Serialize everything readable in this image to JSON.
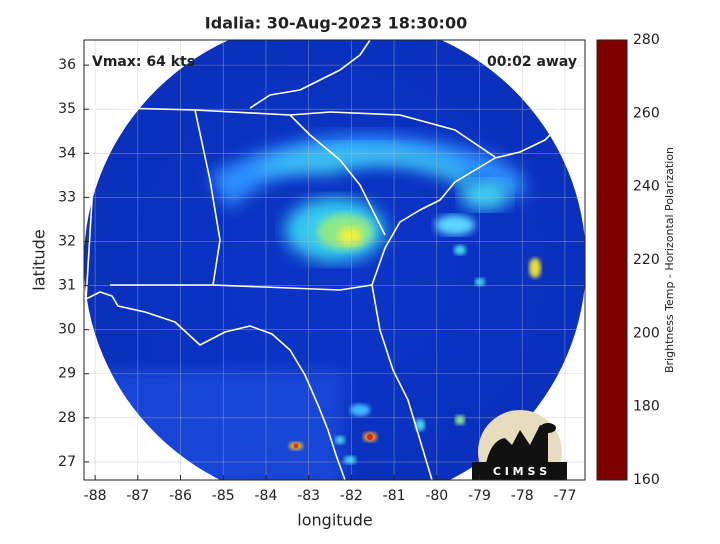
{
  "chart_data": {
    "type": "map",
    "title": "Idalia: 30-Aug-2023 18:30:00",
    "annotations": [
      "Vmax: 64 kts",
      "00:02 away"
    ],
    "xlabel": "longitude",
    "ylabel": "latitude",
    "xlim": [
      -88.26,
      -76.53
    ],
    "ylim": [
      26.59,
      36.57
    ],
    "xticks": [
      -88,
      -87,
      -86,
      -85,
      -84,
      -83,
      -82,
      -81,
      -80,
      -79,
      -78,
      -77
    ],
    "yticks": [
      27,
      28,
      29,
      30,
      31,
      32,
      33,
      34,
      35,
      36
    ],
    "grid": true,
    "colorbar": {
      "label": "Brightness Temp - Horizontal Polarization",
      "lim": [
        160,
        280
      ],
      "ticks": [
        160,
        180,
        200,
        220,
        240,
        260,
        280
      ],
      "colormap": "jet"
    },
    "logo_text": "C I M S S"
  }
}
